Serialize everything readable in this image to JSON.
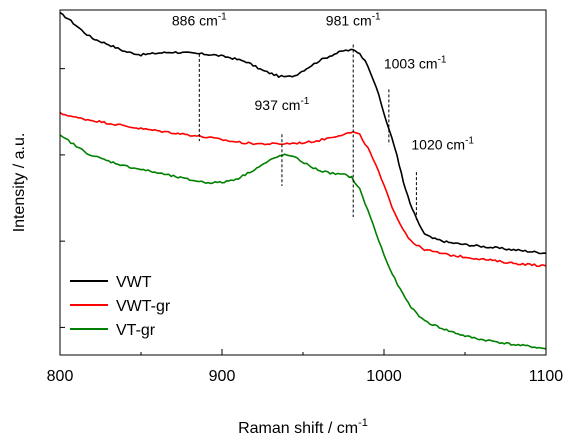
{
  "chart_data": {
    "type": "line",
    "title": "",
    "xlabel": "Raman shift / cm",
    "xlabel_sup": "-1",
    "ylabel": "Intensity / a.u.",
    "xlim": [
      800,
      1100
    ],
    "ylim": [
      0,
      1
    ],
    "x_ticks": [
      800,
      900,
      1000,
      1100
    ],
    "y_ticks": [
      0.08,
      0.33,
      0.58,
      0.83
    ],
    "grid": false,
    "legend_position": "bottom-left",
    "series": [
      {
        "name": "VWT",
        "color": "#000000",
        "x": [
          800,
          805,
          810,
          815,
          820,
          830,
          840,
          850,
          860,
          870,
          880,
          886,
          895,
          905,
          915,
          925,
          935,
          940,
          945,
          952,
          960,
          968,
          975,
          981,
          985,
          990,
          995,
          1000,
          1003,
          1008,
          1012,
          1016,
          1020,
          1025,
          1030,
          1040,
          1050,
          1060,
          1070,
          1080,
          1090,
          1100
        ],
        "y": [
          0.99,
          0.975,
          0.955,
          0.935,
          0.918,
          0.9,
          0.88,
          0.87,
          0.875,
          0.878,
          0.875,
          0.873,
          0.87,
          0.862,
          0.85,
          0.825,
          0.808,
          0.806,
          0.81,
          0.83,
          0.853,
          0.87,
          0.882,
          0.884,
          0.875,
          0.84,
          0.78,
          0.7,
          0.655,
          0.58,
          0.5,
          0.44,
          0.395,
          0.35,
          0.338,
          0.326,
          0.32,
          0.315,
          0.31,
          0.305,
          0.3,
          0.295
        ]
      },
      {
        "name": "VWT-gr",
        "color": "#ff0000",
        "x": [
          800,
          805,
          810,
          820,
          830,
          840,
          850,
          860,
          870,
          880,
          886,
          895,
          905,
          915,
          925,
          937,
          945,
          952,
          960,
          968,
          975,
          981,
          985,
          990,
          995,
          1000,
          1005,
          1010,
          1015,
          1020,
          1025,
          1030,
          1040,
          1050,
          1060,
          1070,
          1080,
          1090,
          1100
        ],
        "y": [
          0.7,
          0.695,
          0.688,
          0.68,
          0.672,
          0.664,
          0.656,
          0.65,
          0.644,
          0.638,
          0.634,
          0.628,
          0.62,
          0.614,
          0.612,
          0.612,
          0.614,
          0.616,
          0.622,
          0.632,
          0.64,
          0.646,
          0.638,
          0.6,
          0.55,
          0.49,
          0.43,
          0.38,
          0.34,
          0.318,
          0.306,
          0.3,
          0.29,
          0.284,
          0.278,
          0.272,
          0.266,
          0.262,
          0.258
        ]
      },
      {
        "name": "VT-gr",
        "color": "#008000",
        "x": [
          800,
          805,
          810,
          815,
          820,
          830,
          840,
          850,
          860,
          870,
          880,
          890,
          900,
          910,
          920,
          930,
          937,
          942,
          948,
          955,
          962,
          970,
          976,
          980,
          985,
          990,
          995,
          1000,
          1005,
          1010,
          1015,
          1020,
          1025,
          1030,
          1040,
          1050,
          1060,
          1070,
          1080,
          1090,
          1100
        ],
        "y": [
          0.635,
          0.622,
          0.605,
          0.59,
          0.578,
          0.562,
          0.548,
          0.538,
          0.528,
          0.518,
          0.508,
          0.5,
          0.5,
          0.512,
          0.538,
          0.565,
          0.58,
          0.578,
          0.565,
          0.545,
          0.532,
          0.525,
          0.522,
          0.515,
          0.48,
          0.42,
          0.355,
          0.29,
          0.235,
          0.19,
          0.15,
          0.12,
          0.1,
          0.088,
          0.07,
          0.055,
          0.045,
          0.038,
          0.03,
          0.025,
          0.018
        ]
      }
    ],
    "annotations": [
      {
        "x": 886,
        "label": "886 cm",
        "sup": "-1",
        "y_top": 0.873,
        "y_bottom": 0.62,
        "text_y": 0.955,
        "anchor": "middle"
      },
      {
        "x": 937,
        "label": "937 cm",
        "sup": "-1",
        "y_top": 0.64,
        "y_bottom": 0.49,
        "text_y": 0.71,
        "anchor": "middle"
      },
      {
        "x": 981,
        "label": "981 cm",
        "sup": "-1",
        "y_top": 0.9,
        "y_bottom": 0.4,
        "text_y": 0.955,
        "anchor": "middle"
      },
      {
        "x": 1003,
        "label": "1003 cm",
        "sup": "-1",
        "y_top": 0.77,
        "y_bottom": 0.61,
        "text_y": 0.83,
        "anchor": "start"
      },
      {
        "x": 1020,
        "label": "1020 cm",
        "sup": "-1",
        "y_top": 0.53,
        "y_bottom": 0.39,
        "text_y": 0.595,
        "anchor": "start"
      }
    ]
  }
}
